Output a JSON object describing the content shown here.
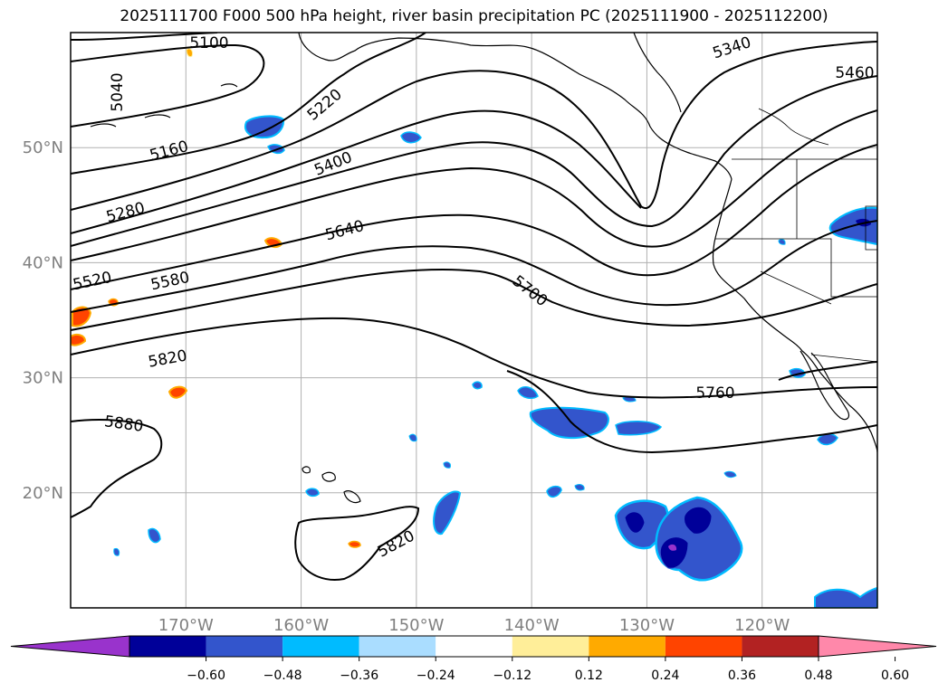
{
  "title": "2025111700 F000 500 hPa height, river basin precipitation PC (2025111900 - 2025112200)",
  "map": {
    "projection": "equirectangular",
    "lon_range": [
      -180,
      -110
    ],
    "lat_range": [
      10,
      60
    ],
    "lat_ticks": [
      {
        "lat": 50,
        "label": "50°N"
      },
      {
        "lat": 40,
        "label": "40°N"
      },
      {
        "lat": 30,
        "label": "30°N"
      },
      {
        "lat": 20,
        "label": "20°N"
      }
    ],
    "lon_ticks": [
      {
        "lon": -170,
        "label": "170°W"
      },
      {
        "lon": -160,
        "label": "160°W"
      },
      {
        "lon": -150,
        "label": "150°W"
      },
      {
        "lon": -140,
        "label": "140°W"
      },
      {
        "lon": -130,
        "label": "130°W"
      },
      {
        "lon": -120,
        "label": "120°W"
      }
    ],
    "gridlines": true,
    "contour_labels": [
      "5100",
      "5040",
      "5220",
      "5340",
      "5460",
      "5160",
      "5400",
      "5280",
      "5640",
      "5520",
      "5580",
      "5700",
      "5820",
      "5760",
      "5880",
      "5820"
    ]
  },
  "colorbar": {
    "colors": [
      "#9933cc",
      "#000099",
      "#3355cc",
      "#00bbff",
      "#aaddff",
      "#ffffff",
      "#ffee99",
      "#ffaa00",
      "#ff4400",
      "#b22222",
      "#ff88aa"
    ],
    "tick_labels": [
      "−0.60",
      "−0.48",
      "−0.36",
      "−0.24",
      "−0.12",
      "0.12",
      "0.24",
      "0.36",
      "0.48",
      "0.60"
    ],
    "extend": "both"
  }
}
